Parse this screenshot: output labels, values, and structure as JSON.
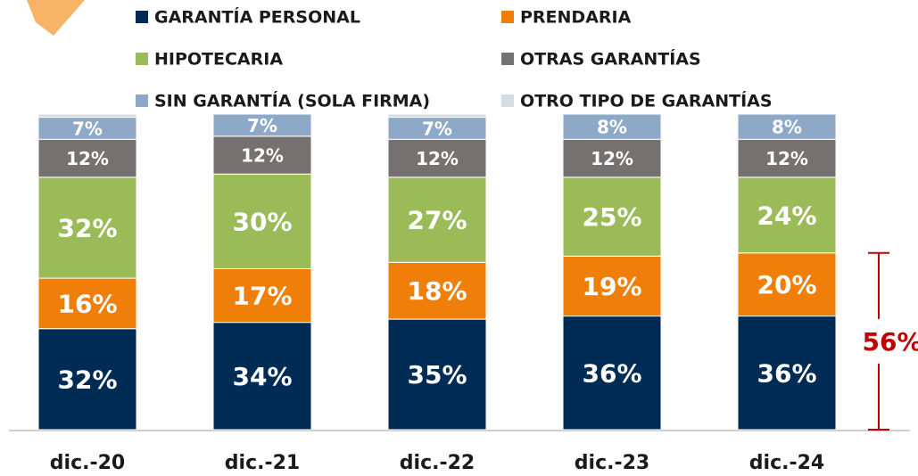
{
  "chart_data": {
    "type": "stacked-bar",
    "categories": [
      "dic.-20",
      "dic.-21",
      "dic.-22",
      "dic.-23",
      "dic.-24"
    ],
    "series": [
      {
        "name": "GARANTÍA PERSONAL",
        "color": "#002b55",
        "values": [
          32,
          34,
          35,
          36,
          36
        ],
        "value_labels": [
          "32%",
          "34%",
          "35%",
          "36%",
          "36%"
        ]
      },
      {
        "name": "PRENDARIA",
        "color": "#f07f09",
        "values": [
          16,
          17,
          18,
          19,
          20
        ],
        "value_labels": [
          "16%",
          "17%",
          "18%",
          "19%",
          "20%"
        ]
      },
      {
        "name": "HIPOTECARIA",
        "color": "#9bbb59",
        "values": [
          32,
          30,
          27,
          25,
          24
        ],
        "value_labels": [
          "32%",
          "30%",
          "27%",
          "25%",
          "24%"
        ]
      },
      {
        "name": "OTRAS GARANTÍAS",
        "color": "#767171",
        "values": [
          12,
          12,
          12,
          12,
          12
        ],
        "value_labels": [
          "12%",
          "12%",
          "12%",
          "12%",
          "12%"
        ]
      },
      {
        "name": "SIN GARANTÍA (SOLA FIRMA)",
        "color": "#8ea9c8",
        "values": [
          7,
          7,
          7,
          8,
          8
        ],
        "value_labels": [
          "7%",
          "7%",
          "7%",
          "8%",
          "8%"
        ]
      },
      {
        "name": "OTRO TIPO DE GARANTÍAS",
        "color": "#d6dce5",
        "values": [
          1,
          0,
          1,
          0,
          0
        ]
      }
    ],
    "annotation": "56%",
    "annotation_color": "#c00000"
  }
}
